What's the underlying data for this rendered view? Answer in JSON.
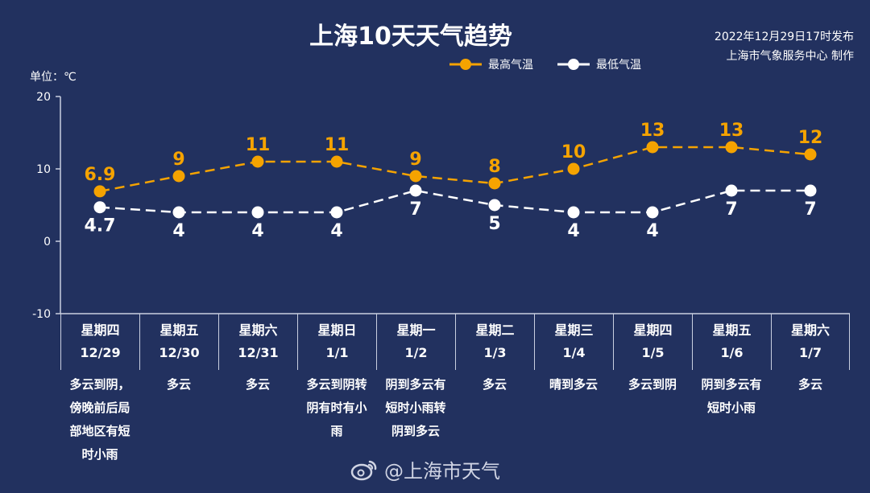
{
  "title": "上海10天天气趋势",
  "publish": {
    "line1": "2022年12月29日17时发布",
    "line2": "上海市气象服务中心 制作"
  },
  "unit_label": "单位：℃",
  "colors": {
    "background": "#22315f",
    "high": "#f5a300",
    "low": "#ffffff",
    "axis": "#c9cfe0"
  },
  "watermark": "@上海市天气",
  "chart_data": {
    "type": "line",
    "title": "上海10天天气趋势",
    "ylabel": "单位：℃",
    "ylim": [
      -10,
      20
    ],
    "yticks": [
      20,
      10,
      0,
      -10
    ],
    "legend_position": "top-right",
    "categories": [
      "12/29",
      "12/30",
      "12/31",
      "1/1",
      "1/2",
      "1/3",
      "1/4",
      "1/5",
      "1/6",
      "1/7"
    ],
    "series": [
      {
        "name": "最高气温",
        "color": "#f5a300",
        "values": [
          6.9,
          9,
          11,
          11,
          9,
          8,
          10,
          13,
          13,
          12
        ],
        "labels": [
          "6.9",
          "9",
          "11",
          "11",
          "9",
          "8",
          "10",
          "13",
          "13",
          "12"
        ]
      },
      {
        "name": "最低气温",
        "color": "#ffffff",
        "values": [
          4.7,
          4,
          4,
          4,
          7,
          5,
          4,
          4,
          7,
          7
        ],
        "labels": [
          "4.7",
          "4",
          "4",
          "4",
          "7",
          "5",
          "4",
          "4",
          "7",
          "7"
        ]
      }
    ]
  },
  "days": [
    {
      "weekday": "星期四",
      "date": "12/29",
      "weather": "多云到阴，傍晚前后局部地区有短时小雨"
    },
    {
      "weekday": "星期五",
      "date": "12/30",
      "weather": "多云"
    },
    {
      "weekday": "星期六",
      "date": "12/31",
      "weather": "多云"
    },
    {
      "weekday": "星期日",
      "date": "1/1",
      "weather": "多云到阴转阴有时有小雨"
    },
    {
      "weekday": "星期一",
      "date": "1/2",
      "weather": "阴到多云有短时小雨转阴到多云"
    },
    {
      "weekday": "星期二",
      "date": "1/3",
      "weather": "多云"
    },
    {
      "weekday": "星期三",
      "date": "1/4",
      "weather": "晴到多云"
    },
    {
      "weekday": "星期四",
      "date": "1/5",
      "weather": "多云到阴"
    },
    {
      "weekday": "星期五",
      "date": "1/6",
      "weather": "阴到多云有短时小雨"
    },
    {
      "weekday": "星期六",
      "date": "1/7",
      "weather": "多云"
    }
  ]
}
